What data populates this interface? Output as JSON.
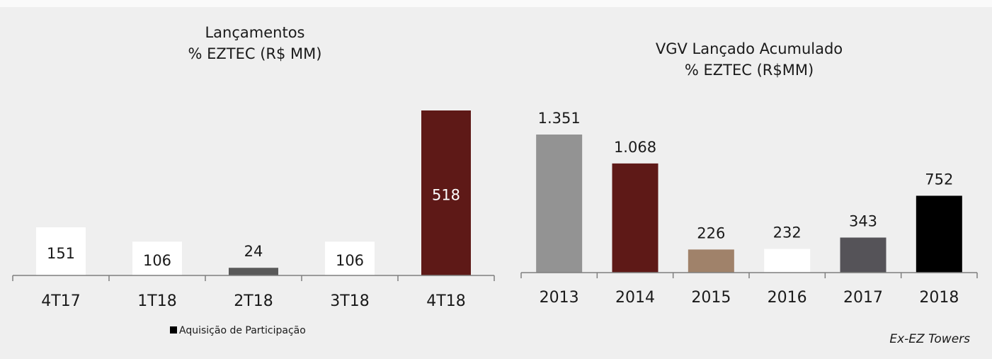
{
  "chart_data": [
    {
      "type": "bar",
      "title": "Lançamentos",
      "subtitle": "% EZTEC (R$ MM)",
      "categories": [
        "4T17",
        "1T18",
        "2T18",
        "3T18",
        "4T18"
      ],
      "values": [
        151,
        106,
        24,
        106,
        518
      ],
      "colors": [
        "#ffffff",
        "#ffffff",
        "#595959",
        "#ffffff",
        "#5e1917"
      ],
      "value_label_position": "inside",
      "legend": {
        "name": "Aquisição de Participação",
        "color": "#000000"
      }
    },
    {
      "type": "bar",
      "title": "VGV Lançado Acumulado",
      "subtitle": "% EZTEC (R$MM)",
      "categories": [
        "2013",
        "2014",
        "2015",
        "2016",
        "2017",
        "2018"
      ],
      "values": [
        1351,
        1068,
        226,
        232,
        343,
        752
      ],
      "value_labels": [
        "1.351",
        "1.068",
        "226",
        "232",
        "343",
        "752"
      ],
      "colors": [
        "#939393",
        "#5e1917",
        "#a0826a",
        "#ffffff",
        "#555358",
        "#000000"
      ],
      "value_label_position": "above",
      "annotation": "Ex-EZ Towers"
    }
  ]
}
